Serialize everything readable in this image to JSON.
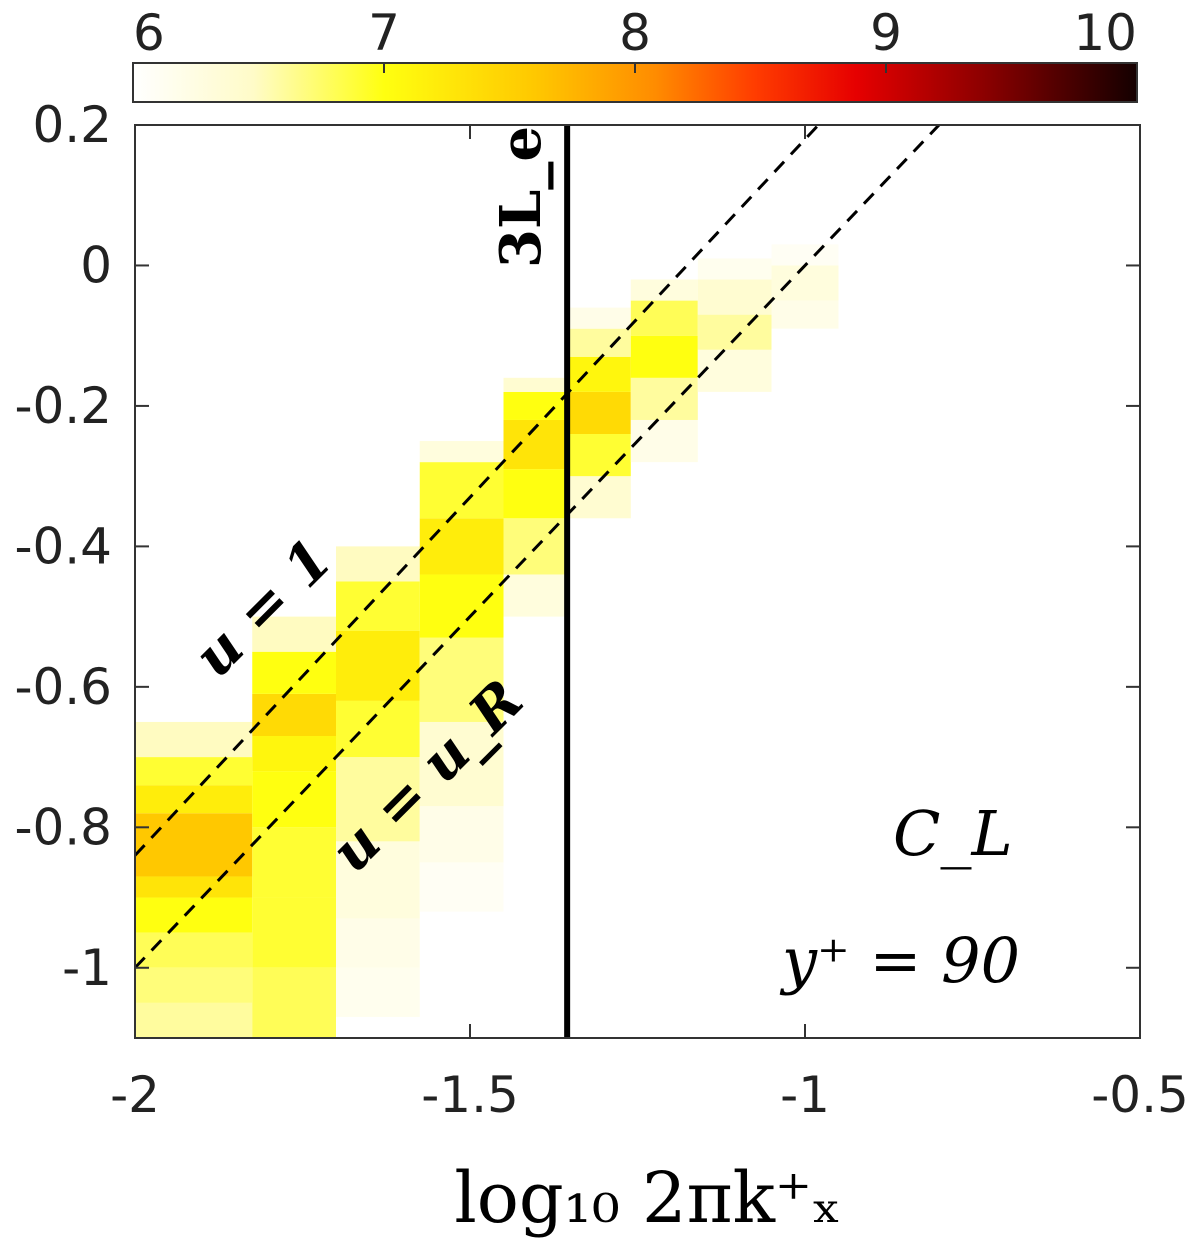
{
  "chart_data": {
    "type": "heatmap",
    "title": "",
    "xlabel": "log₁₀ 2πk⁺ₓ",
    "ylabel": "",
    "xlim": [
      -2,
      -0.5
    ],
    "ylim": [
      -1.1,
      0.2
    ],
    "x_ticks": [
      "-2",
      "-1.5",
      "-1",
      "-0.5"
    ],
    "y_ticks": [
      "0.2",
      "0",
      "-0.2",
      "-0.4",
      "-0.6",
      "-0.8",
      "-1"
    ],
    "colorbar": {
      "range": [
        6,
        10
      ],
      "ticks": [
        "6",
        "7",
        "8",
        "9",
        "10"
      ],
      "colormap": "hot_reversed",
      "location": "top"
    },
    "annotations": {
      "panel_label": "C_L",
      "yplus_label": "y⁺ = 90",
      "line_3Le_label": "3L_e",
      "line_u1_label": "u = 1",
      "line_uR_label": "u = u_R"
    },
    "reference_lines": {
      "vertical_3Le_x": -1.355,
      "u1": {
        "x1": -2.0,
        "y1": -0.84,
        "x2": -0.98,
        "y2": 0.2
      },
      "uR": {
        "x1": -2.0,
        "y1": -1.0,
        "x2": -0.8,
        "y2": 0.2
      }
    },
    "cells": [
      [
        -2.0,
        -1.825,
        -1.1,
        -1.05,
        6.6
      ],
      [
        -2.0,
        -1.825,
        -1.05,
        -1.0,
        6.7
      ],
      [
        -2.0,
        -1.825,
        -1.0,
        -0.95,
        6.8
      ],
      [
        -2.0,
        -1.825,
        -0.95,
        -0.9,
        7.0
      ],
      [
        -2.0,
        -1.825,
        -0.9,
        -0.87,
        7.3
      ],
      [
        -2.0,
        -1.825,
        -0.87,
        -0.78,
        7.6
      ],
      [
        -2.0,
        -1.825,
        -0.78,
        -0.74,
        7.2
      ],
      [
        -2.0,
        -1.825,
        -0.74,
        -0.7,
        6.9
      ],
      [
        -2.0,
        -1.825,
        -0.7,
        -0.65,
        6.5
      ],
      [
        -1.825,
        -1.7,
        -1.1,
        -1.0,
        6.8
      ],
      [
        -1.825,
        -1.7,
        -1.0,
        -0.9,
        6.9
      ],
      [
        -1.825,
        -1.7,
        -0.9,
        -0.8,
        6.9
      ],
      [
        -1.825,
        -1.7,
        -0.8,
        -0.72,
        7.0
      ],
      [
        -1.825,
        -1.7,
        -0.72,
        -0.67,
        7.1
      ],
      [
        -1.825,
        -1.7,
        -0.67,
        -0.61,
        7.4
      ],
      [
        -1.825,
        -1.7,
        -0.61,
        -0.55,
        7.0
      ],
      [
        -1.825,
        -1.7,
        -0.55,
        -0.5,
        6.5
      ],
      [
        -1.7,
        -1.575,
        -1.07,
        -1.0,
        6.15
      ],
      [
        -1.7,
        -1.575,
        -1.0,
        -0.93,
        6.2
      ],
      [
        -1.7,
        -1.575,
        -0.93,
        -0.82,
        6.3
      ],
      [
        -1.7,
        -1.575,
        -0.82,
        -0.7,
        6.6
      ],
      [
        -1.7,
        -1.575,
        -0.7,
        -0.62,
        6.9
      ],
      [
        -1.7,
        -1.575,
        -0.62,
        -0.52,
        7.2
      ],
      [
        -1.7,
        -1.575,
        -0.52,
        -0.45,
        6.9
      ],
      [
        -1.7,
        -1.575,
        -0.45,
        -0.4,
        6.5
      ],
      [
        -1.575,
        -1.45,
        -0.92,
        -0.85,
        6.1
      ],
      [
        -1.575,
        -1.45,
        -0.85,
        -0.77,
        6.2
      ],
      [
        -1.575,
        -1.45,
        -0.77,
        -0.65,
        6.4
      ],
      [
        -1.575,
        -1.45,
        -0.65,
        -0.53,
        6.7
      ],
      [
        -1.575,
        -1.45,
        -0.53,
        -0.44,
        7.0
      ],
      [
        -1.575,
        -1.45,
        -0.44,
        -0.36,
        7.2
      ],
      [
        -1.575,
        -1.45,
        -0.36,
        -0.28,
        6.9
      ],
      [
        -1.575,
        -1.45,
        -0.28,
        -0.25,
        6.3
      ],
      [
        -1.45,
        -1.355,
        -0.5,
        -0.44,
        6.3
      ],
      [
        -1.45,
        -1.355,
        -0.44,
        -0.36,
        6.7
      ],
      [
        -1.45,
        -1.355,
        -0.36,
        -0.29,
        7.0
      ],
      [
        -1.45,
        -1.355,
        -0.29,
        -0.22,
        7.3
      ],
      [
        -1.45,
        -1.355,
        -0.22,
        -0.18,
        7.0
      ],
      [
        -1.45,
        -1.355,
        -0.18,
        -0.16,
        6.4
      ],
      [
        -1.355,
        -1.26,
        -0.36,
        -0.3,
        6.4
      ],
      [
        -1.355,
        -1.26,
        -0.3,
        -0.24,
        6.9
      ],
      [
        -1.355,
        -1.26,
        -0.24,
        -0.18,
        7.4
      ],
      [
        -1.355,
        -1.26,
        -0.18,
        -0.13,
        7.1
      ],
      [
        -1.355,
        -1.26,
        -0.13,
        -0.09,
        6.6
      ],
      [
        -1.355,
        -1.26,
        -0.09,
        -0.06,
        6.2
      ],
      [
        -1.26,
        -1.16,
        -0.28,
        -0.22,
        6.2
      ],
      [
        -1.26,
        -1.16,
        -0.22,
        -0.16,
        6.6
      ],
      [
        -1.26,
        -1.16,
        -0.16,
        -0.1,
        7.0
      ],
      [
        -1.26,
        -1.16,
        -0.1,
        -0.05,
        6.8
      ],
      [
        -1.26,
        -1.16,
        -0.05,
        -0.02,
        6.3
      ],
      [
        -1.16,
        -1.05,
        -0.18,
        -0.12,
        6.3
      ],
      [
        -1.16,
        -1.05,
        -0.12,
        -0.07,
        6.6
      ],
      [
        -1.16,
        -1.05,
        -0.07,
        -0.02,
        6.4
      ],
      [
        -1.16,
        -1.05,
        -0.02,
        0.01,
        6.15
      ],
      [
        -1.05,
        -0.95,
        -0.09,
        -0.05,
        6.2
      ],
      [
        -1.05,
        -0.95,
        -0.05,
        0.0,
        6.3
      ],
      [
        -1.05,
        -0.95,
        0.0,
        0.03,
        6.1
      ]
    ]
  }
}
